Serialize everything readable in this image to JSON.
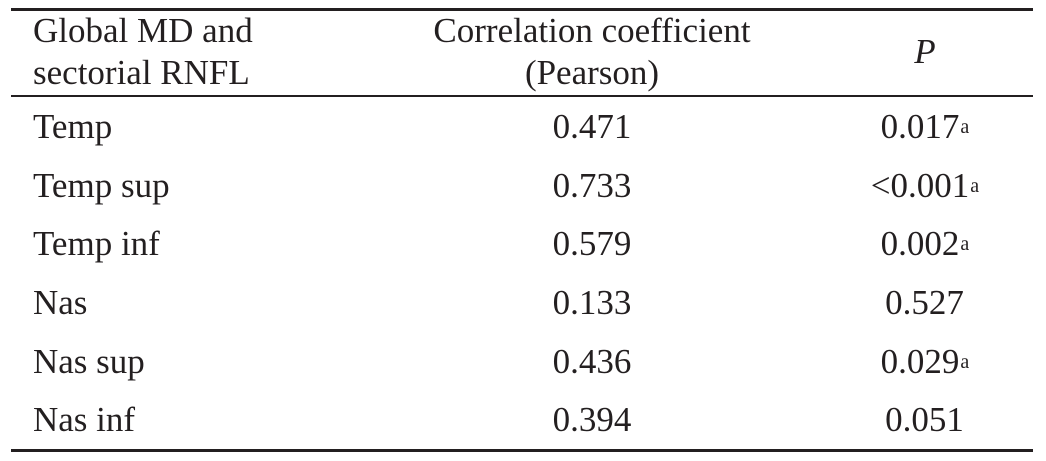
{
  "table": {
    "header": {
      "col1": [
        "Global MD and",
        "sectorial RNFL"
      ],
      "col2": [
        "Correlation coefficient",
        "(Pearson)"
      ],
      "col3": "P"
    },
    "rows": [
      {
        "sector": "Temp",
        "r": "0.471",
        "p": "0.017",
        "p_mark": "a"
      },
      {
        "sector": "Temp sup",
        "r": "0.733",
        "p": "<0.001",
        "p_mark": "a"
      },
      {
        "sector": "Temp inf",
        "r": "0.579",
        "p": "0.002",
        "p_mark": "a"
      },
      {
        "sector": "Nas",
        "r": "0.133",
        "p": "0.527",
        "p_mark": ""
      },
      {
        "sector": "Nas sup",
        "r": "0.436",
        "p": "0.029",
        "p_mark": "a"
      },
      {
        "sector": "Nas inf",
        "r": "0.394",
        "p": "0.051",
        "p_mark": ""
      }
    ]
  }
}
